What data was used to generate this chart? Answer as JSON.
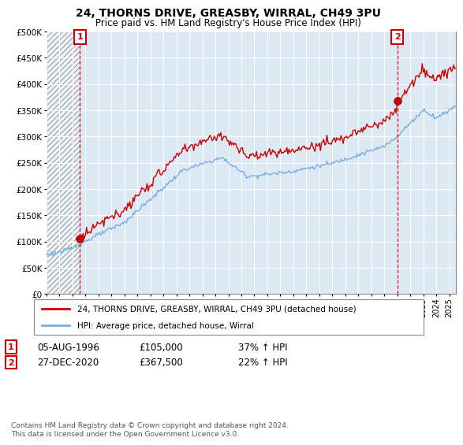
{
  "title": "24, THORNS DRIVE, GREASBY, WIRRAL, CH49 3PU",
  "subtitle": "Price paid vs. HM Land Registry's House Price Index (HPI)",
  "legend_line1": "24, THORNS DRIVE, GREASBY, WIRRAL, CH49 3PU (detached house)",
  "legend_line2": "HPI: Average price, detached house, Wirral",
  "sale1_date": "05-AUG-1996",
  "sale1_price": 105000,
  "sale1_label": "37% ↑ HPI",
  "sale2_date": "27-DEC-2020",
  "sale2_price": 367500,
  "sale2_label": "22% ↑ HPI",
  "footnote": "Contains HM Land Registry data © Crown copyright and database right 2024.\nThis data is licensed under the Open Government Licence v3.0.",
  "red_color": "#cc0000",
  "blue_color": "#7aaddd",
  "chart_bg": "#dce9f5",
  "hatch_color": "#c8c8c8",
  "ylim_min": 0,
  "ylim_max": 500000,
  "x_start_year": 1994,
  "x_end_year": 2025
}
